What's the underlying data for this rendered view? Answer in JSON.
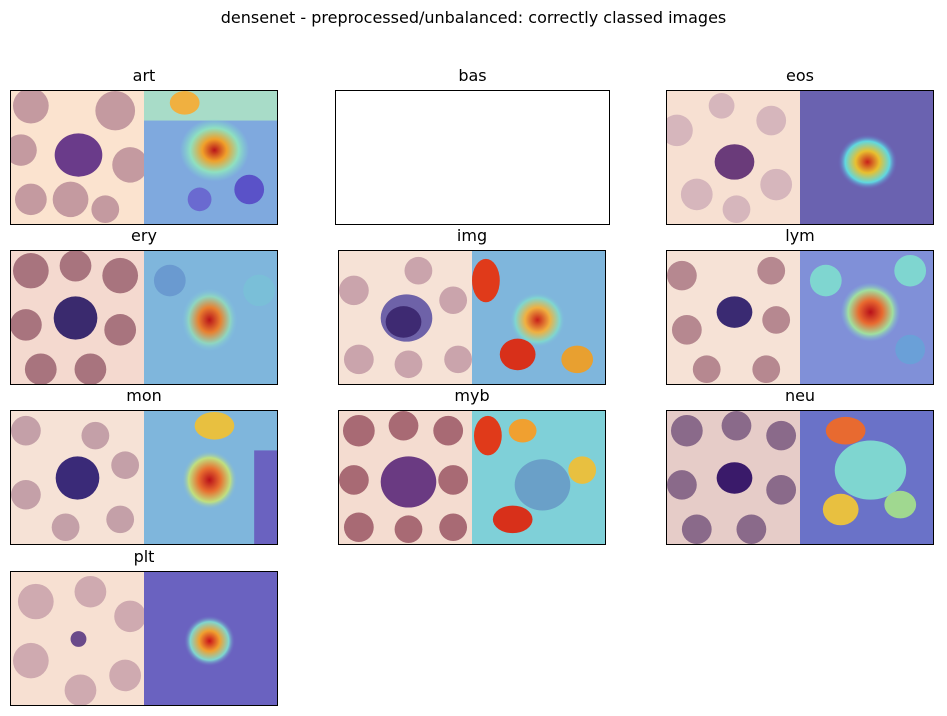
{
  "figure": {
    "title": "densenet - preprocessed/unbalanced: correctly classed images"
  },
  "panels": [
    {
      "label": "art",
      "has_image": true
    },
    {
      "label": "bas",
      "has_image": false
    },
    {
      "label": "eos",
      "has_image": true
    },
    {
      "label": "ery",
      "has_image": true
    },
    {
      "label": "img",
      "has_image": true
    },
    {
      "label": "lym",
      "has_image": true
    },
    {
      "label": "mon",
      "has_image": true
    },
    {
      "label": "myb",
      "has_image": true
    },
    {
      "label": "neu",
      "has_image": true
    },
    {
      "label": "plt",
      "has_image": true
    }
  ],
  "colors": {
    "background_light": "#fbe3cf",
    "background_dark": "#ead2cd",
    "rbc": "#b48a94",
    "nucleus": "#4b2c7e",
    "heatmap_low": "#5a52c8",
    "heatmap_mid": "#7fd6d0",
    "heatmap_high": "#e23a1a"
  }
}
